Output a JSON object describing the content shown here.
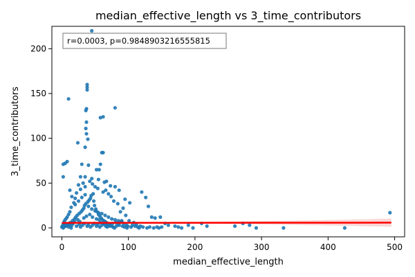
{
  "chart_data": {
    "type": "scatter",
    "title": "median_effective_length vs 3_time_contributors",
    "xlabel": "median_effective_length",
    "ylabel": "3_time_contributors",
    "xlim": [
      -15,
      515
    ],
    "ylim": [
      -10,
      225
    ],
    "x_ticks": [
      0,
      100,
      200,
      300,
      400,
      500
    ],
    "y_ticks": [
      0,
      50,
      100,
      150,
      200
    ],
    "x_tick_labels": [
      "0",
      "100",
      "200",
      "300",
      "400",
      "500"
    ],
    "y_tick_labels": [
      "0",
      "50",
      "100",
      "150",
      "200"
    ],
    "grid": false,
    "legend": "none",
    "annotation": {
      "text": "r=0.0003, p=0.9848903216555815",
      "placement": "top-left"
    },
    "colors": {
      "points": "#1f77b4",
      "regression": "#ff0000",
      "ci_band": "#f4b4b4"
    },
    "regression": {
      "x_start": 0,
      "y_start": 5.6,
      "x_end": 495,
      "y_end": 5.8,
      "ci_halfwidth_low_x": 0.6,
      "ci_halfwidth_high_x": 4.5
    },
    "series": [
      {
        "values": [
          [
            45,
            220
          ],
          [
            38,
            160
          ],
          [
            38,
            157
          ],
          [
            38,
            154
          ],
          [
            10,
            144
          ],
          [
            80,
            134
          ],
          [
            37,
            133
          ],
          [
            36,
            131
          ],
          [
            62,
            124
          ],
          [
            58,
            123
          ],
          [
            37,
            118
          ],
          [
            36,
            111
          ],
          [
            37,
            105
          ],
          [
            39,
            99
          ],
          [
            24,
            95
          ],
          [
            62,
            84
          ],
          [
            60,
            84
          ],
          [
            35,
            90
          ],
          [
            30,
            71
          ],
          [
            5,
            72
          ],
          [
            58,
            71
          ],
          [
            8,
            74
          ],
          [
            2,
            71
          ],
          [
            40,
            70
          ],
          [
            56,
            65
          ],
          [
            52,
            65
          ],
          [
            2,
            57
          ],
          [
            35,
            57
          ],
          [
            28,
            57
          ],
          [
            64,
            51
          ],
          [
            67,
            52
          ],
          [
            45,
            55
          ],
          [
            55,
            54
          ],
          [
            12,
            42
          ],
          [
            73,
            47
          ],
          [
            86,
            42
          ],
          [
            120,
            40
          ],
          [
            126,
            34
          ],
          [
            80,
            46
          ],
          [
            35,
            46
          ],
          [
            25,
            48
          ],
          [
            15,
            35
          ],
          [
            95,
            32
          ],
          [
            102,
            28
          ],
          [
            130,
            24
          ],
          [
            148,
            12
          ],
          [
            140,
            11
          ],
          [
            135,
            12
          ],
          [
            155,
            5
          ],
          [
            160,
            3
          ],
          [
            170,
            2
          ],
          [
            175,
            1
          ],
          [
            180,
            0
          ],
          [
            190,
            3
          ],
          [
            197,
            0
          ],
          [
            210,
            5
          ],
          [
            218,
            2
          ],
          [
            260,
            2
          ],
          [
            272,
            5
          ],
          [
            282,
            3
          ],
          [
            292,
            0
          ],
          [
            333,
            0
          ],
          [
            425,
            0
          ],
          [
            493,
            17
          ],
          [
            118,
            2
          ],
          [
            112,
            4
          ],
          [
            108,
            6
          ],
          [
            101,
            8
          ],
          [
            96,
            14
          ],
          [
            92,
            22
          ],
          [
            88,
            18
          ],
          [
            84,
            27
          ],
          [
            78,
            30
          ],
          [
            74,
            35
          ],
          [
            70,
            38
          ],
          [
            66,
            42
          ],
          [
            62,
            40
          ],
          [
            54,
            44
          ],
          [
            50,
            46
          ],
          [
            46,
            49
          ],
          [
            42,
            52
          ],
          [
            32,
            50
          ],
          [
            28,
            43
          ],
          [
            22,
            39
          ],
          [
            20,
            33
          ],
          [
            18,
            28
          ],
          [
            14,
            23
          ],
          [
            12,
            18
          ],
          [
            10,
            15
          ],
          [
            8,
            12
          ],
          [
            6,
            10
          ],
          [
            4,
            8
          ],
          [
            3,
            6
          ],
          [
            2,
            4
          ],
          [
            1,
            2
          ],
          [
            0,
            1
          ],
          [
            3,
            1
          ],
          [
            5,
            2
          ],
          [
            7,
            3
          ],
          [
            9,
            4
          ],
          [
            11,
            5
          ],
          [
            13,
            6
          ],
          [
            16,
            8
          ],
          [
            19,
            10
          ],
          [
            21,
            12
          ],
          [
            23,
            14
          ],
          [
            26,
            16
          ],
          [
            29,
            18
          ],
          [
            31,
            20
          ],
          [
            33,
            22
          ],
          [
            34,
            25
          ],
          [
            36,
            27
          ],
          [
            39,
            29
          ],
          [
            41,
            31
          ],
          [
            43,
            33
          ],
          [
            44,
            36
          ],
          [
            47,
            38
          ],
          [
            48,
            30
          ],
          [
            49,
            25
          ],
          [
            51,
            21
          ],
          [
            53,
            18
          ],
          [
            55,
            15
          ],
          [
            57,
            13
          ],
          [
            59,
            11
          ],
          [
            61,
            9
          ],
          [
            63,
            8
          ],
          [
            65,
            7
          ],
          [
            67,
            6
          ],
          [
            69,
            5
          ],
          [
            71,
            4
          ],
          [
            73,
            3
          ],
          [
            75,
            2
          ],
          [
            77,
            1
          ],
          [
            79,
            0
          ],
          [
            82,
            2
          ],
          [
            85,
            4
          ],
          [
            87,
            6
          ],
          [
            90,
            8
          ],
          [
            93,
            5
          ],
          [
            97,
            3
          ],
          [
            99,
            2
          ],
          [
            104,
            1
          ],
          [
            106,
            3
          ],
          [
            110,
            2
          ],
          [
            114,
            1
          ],
          [
            116,
            0
          ],
          [
            122,
            1
          ],
          [
            128,
            0
          ],
          [
            132,
            1
          ],
          [
            138,
            0
          ],
          [
            143,
            1
          ],
          [
            146,
            0
          ],
          [
            150,
            1
          ],
          [
            20,
            26
          ],
          [
            25,
            30
          ],
          [
            30,
            34
          ],
          [
            35,
            37
          ],
          [
            40,
            24
          ],
          [
            45,
            21
          ],
          [
            50,
            19
          ],
          [
            55,
            17
          ],
          [
            60,
            16
          ],
          [
            65,
            14
          ],
          [
            70,
            12
          ],
          [
            75,
            10
          ],
          [
            80,
            9
          ],
          [
            85,
            8
          ],
          [
            90,
            7
          ],
          [
            24,
            9
          ],
          [
            27,
            7
          ],
          [
            33,
            11
          ],
          [
            37,
            13
          ],
          [
            42,
            15
          ],
          [
            46,
            12
          ],
          [
            52,
            10
          ],
          [
            56,
            9
          ],
          [
            58,
            6
          ],
          [
            64,
            4
          ],
          [
            68,
            3
          ],
          [
            72,
            2
          ],
          [
            76,
            5
          ],
          [
            81,
            6
          ],
          [
            86,
            3
          ],
          [
            91,
            2
          ],
          [
            94,
            1
          ],
          [
            98,
            0
          ],
          [
            15,
            3
          ],
          [
            17,
            5
          ],
          [
            19,
            7
          ],
          [
            22,
            2
          ],
          [
            26,
            4
          ],
          [
            28,
            1
          ],
          [
            31,
            3
          ],
          [
            34,
            5
          ],
          [
            38,
            2
          ],
          [
            40,
            4
          ],
          [
            43,
            1
          ],
          [
            46,
            3
          ],
          [
            49,
            5
          ],
          [
            52,
            2
          ],
          [
            54,
            4
          ],
          [
            57,
            1
          ],
          [
            60,
            3
          ],
          [
            63,
            5
          ],
          [
            66,
            2
          ],
          [
            68,
            1
          ],
          [
            10,
            1
          ],
          [
            12,
            3
          ],
          [
            14,
            0
          ],
          [
            6,
            2
          ],
          [
            4,
            3
          ],
          [
            2,
            0
          ]
        ]
      }
    ]
  }
}
